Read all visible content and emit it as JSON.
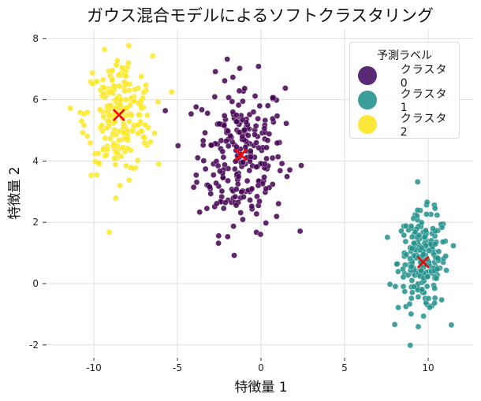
{
  "chart_data": {
    "type": "scatter",
    "title": "ガウス混合モデルによるソフトクラスタリング",
    "xlabel": "特徴量 1",
    "ylabel": "特徴量 2",
    "xlim": [
      -12.5,
      12.5
    ],
    "ylim": [
      -2.4,
      8.3
    ],
    "xticks": [
      -10,
      -5,
      0,
      5,
      10
    ],
    "xtick_labels": [
      "-10",
      "-5",
      "0",
      "5",
      "10"
    ],
    "yticks": [
      -2,
      0,
      2,
      4,
      6,
      8
    ],
    "ytick_labels": [
      "-2",
      "0",
      "2",
      "4",
      "6",
      "8"
    ],
    "grid": true,
    "legend": {
      "title": "予測ラベル",
      "position": "upper right",
      "entries": [
        "クラスタ 0",
        "クラスタ 1",
        "クラスタ 2"
      ]
    },
    "series": [
      {
        "name": "クラスタ 0",
        "color": "#440154",
        "alpha": 0.85,
        "n": 250,
        "mean": [
          -1.2,
          4.2
        ],
        "std": [
          1.3,
          1.25
        ],
        "centroid": [
          -1.2,
          4.2
        ]
      },
      {
        "name": "クラスタ 1",
        "color": "#21918c",
        "alpha": 0.85,
        "n": 220,
        "mean": [
          9.7,
          0.7
        ],
        "std": [
          0.75,
          0.8
        ],
        "centroid": [
          9.7,
          0.7
        ]
      },
      {
        "name": "クラスタ 2",
        "color": "#fde725",
        "alpha": 0.85,
        "n": 230,
        "mean": [
          -8.5,
          5.5
        ],
        "std": [
          1.0,
          0.95
        ],
        "centroid": [
          -8.5,
          5.5
        ]
      }
    ],
    "centroid_marker": {
      "shape": "x",
      "color": "#ff0000"
    }
  }
}
